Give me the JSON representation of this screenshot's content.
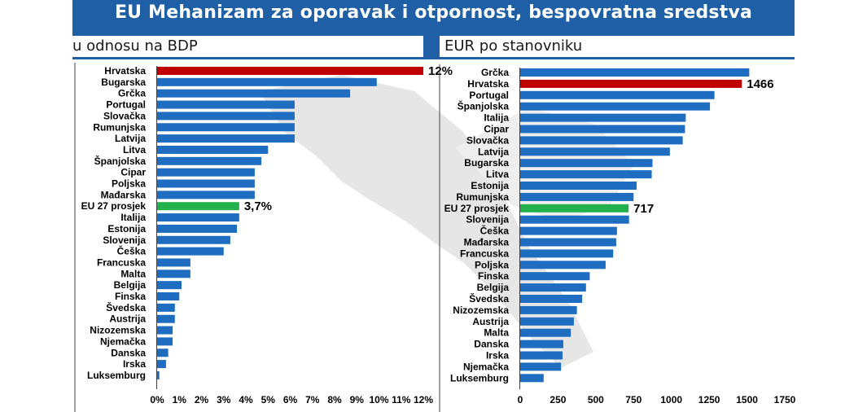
{
  "title": "EU Mehanizam za oporavak i otpornost, bespovratna sredstva",
  "colors": {
    "header": "#1f5fa6",
    "bar": "#1f6dc0",
    "highlight_country": "#c00000",
    "highlight_eu": "#22b14c"
  },
  "chart_data": [
    {
      "type": "bar",
      "subtitle": "u odnosu na BDP",
      "categories": [
        "Hrvatska",
        "Bugarska",
        "Grčka",
        "Portugal",
        "Slovačka",
        "Rumunjska",
        "Latvija",
        "Litva",
        "Španjolska",
        "Cipar",
        "Poljska",
        "Mađarska",
        "EU 27 prosjek",
        "Italija",
        "Estonija",
        "Slovenija",
        "Češka",
        "Francuska",
        "Malta",
        "Belgija",
        "Finska",
        "Švedska",
        "Austrija",
        "Nizozemska",
        "Njemačka",
        "Danska",
        "Irska",
        "Luksemburg"
      ],
      "values": [
        12.0,
        9.9,
        8.7,
        6.2,
        6.2,
        6.2,
        6.2,
        5.0,
        4.7,
        4.4,
        4.4,
        4.4,
        3.7,
        3.7,
        3.6,
        3.3,
        3.0,
        1.5,
        1.5,
        1.1,
        1.0,
        0.8,
        0.8,
        0.7,
        0.7,
        0.5,
        0.4,
        0.1
      ],
      "highlight": {
        "Hrvatska": "country",
        "EU 27 prosjek": "eu"
      },
      "data_labels": {
        "Hrvatska": "12%",
        "EU 27 prosjek": "3,7%"
      },
      "xlim": [
        0,
        12
      ],
      "xticks": [
        "0%",
        "1%",
        "2%",
        "3%",
        "4%",
        "5%",
        "6%",
        "7%",
        "8%",
        "9%",
        "10%",
        "11%",
        "12%"
      ]
    },
    {
      "type": "bar",
      "subtitle": "EUR po stanovniku",
      "categories": [
        "Grčka",
        "Hrvatska",
        "Portugal",
        "Španjolska",
        "Italija",
        "Cipar",
        "Slovačka",
        "Latvija",
        "Bugarska",
        "Litva",
        "Estonija",
        "Rumunjska",
        "EU 27 prosjek",
        "Slovenija",
        "Češka",
        "Mađarska",
        "Francuska",
        "Poljska",
        "Finska",
        "Belgija",
        "Švedska",
        "Nizozemska",
        "Austrija",
        "Malta",
        "Danska",
        "Irska",
        "Njemačka",
        "Luksemburg"
      ],
      "values": [
        1515,
        1466,
        1285,
        1255,
        1095,
        1090,
        1075,
        990,
        875,
        870,
        770,
        750,
        717,
        720,
        640,
        635,
        615,
        565,
        460,
        435,
        410,
        375,
        355,
        335,
        285,
        280,
        270,
        155
      ],
      "highlight": {
        "Hrvatska": "country",
        "EU 27 prosjek": "eu"
      },
      "data_labels": {
        "Hrvatska": "1466",
        "EU 27 prosjek": "717"
      },
      "xlim": [
        0,
        1750
      ],
      "xticks": [
        "0",
        "250",
        "500",
        "750",
        "1000",
        "1250",
        "1500",
        "1750"
      ]
    }
  ]
}
